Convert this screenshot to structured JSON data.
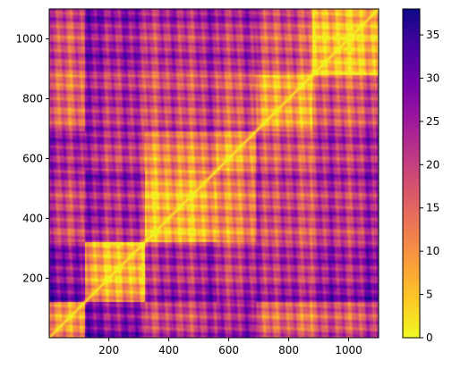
{
  "chart_data": {
    "type": "heatmap",
    "title": "",
    "xlabel": "",
    "ylabel": "",
    "description": "Symmetric pairwise distance matrix; zero on the main diagonal running from bottom-left to top-right; y axis increases upward.",
    "matrix_size": 1100,
    "xlim": [
      1,
      1100
    ],
    "ylim": [
      1,
      1100
    ],
    "x_ticks": [
      {
        "value": 200,
        "label": "200"
      },
      {
        "value": 400,
        "label": "400"
      },
      {
        "value": 600,
        "label": "600"
      },
      {
        "value": 800,
        "label": "800"
      },
      {
        "value": 1000,
        "label": "1000"
      }
    ],
    "y_ticks": [
      {
        "value": 200,
        "label": "200"
      },
      {
        "value": 400,
        "label": "400"
      },
      {
        "value": 600,
        "label": "600"
      },
      {
        "value": 800,
        "label": "800"
      },
      {
        "value": 1000,
        "label": "1000"
      }
    ],
    "colorbar": {
      "colormap": "plasma_r",
      "vmin": 0,
      "vmax": 38,
      "ticks": [
        {
          "value": 0,
          "label": "0"
        },
        {
          "value": 5,
          "label": "5"
        },
        {
          "value": 10,
          "label": "10"
        },
        {
          "value": 15,
          "label": "15"
        },
        {
          "value": 20,
          "label": "20"
        },
        {
          "value": 25,
          "label": "25"
        },
        {
          "value": 30,
          "label": "30"
        },
        {
          "value": 35,
          "label": "35"
        }
      ]
    },
    "colormap_stops": [
      "#f0f921",
      "#fdca26",
      "#fb9f3a",
      "#ed7953",
      "#d8576b",
      "#bd3786",
      "#9c179e",
      "#7201a8",
      "#46039f",
      "#0d0887"
    ],
    "approx_blocks": {
      "boundaries": [
        0,
        120,
        320,
        560,
        690,
        880,
        1100
      ],
      "mean_distance": [
        [
          8,
          26,
          20,
          22,
          14,
          18
        ],
        [
          26,
          6,
          24,
          20,
          22,
          26
        ],
        [
          20,
          24,
          9,
          12,
          20,
          24
        ],
        [
          22,
          20,
          12,
          7,
          16,
          22
        ],
        [
          14,
          22,
          20,
          16,
          8,
          18
        ],
        [
          18,
          26,
          24,
          22,
          18,
          7
        ]
      ]
    }
  }
}
